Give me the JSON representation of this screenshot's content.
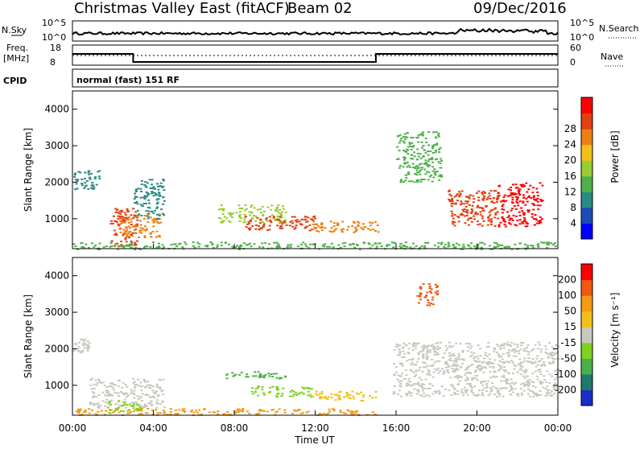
{
  "header": {
    "station": "Christmas Valley East (fitACF)",
    "beam": "Beam 02",
    "date": "09/Dec/2016"
  },
  "nsky_panel": {
    "left_label": "N.Sky",
    "right_label": "N.Search",
    "left_ticks": [
      "10^5",
      "10^0"
    ],
    "right_ticks": [
      "10^5",
      "10^0"
    ]
  },
  "freq_panel": {
    "left_label_1": "Freq.",
    "left_label_2": "[MHz]",
    "right_label": "Nave",
    "left_ticks": [
      "18",
      "8"
    ],
    "right_ticks": [
      "60",
      "0"
    ],
    "freq_steps": [
      {
        "t0": 0,
        "t1": 3,
        "mhz": 13.6
      },
      {
        "t0": 3,
        "t1": 15,
        "mhz": 9.6
      },
      {
        "t0": 15,
        "t1": 24,
        "mhz": 13.6
      }
    ]
  },
  "cpid": {
    "label": "CPID",
    "mode": "normal (fast) 151 RF"
  },
  "chart_data": [
    {
      "type": "heatmap",
      "name": "power",
      "ylabel": "Slant Range [km]",
      "ylim": [
        180,
        4500
      ],
      "yticks": [
        "1000",
        "2000",
        "3000",
        "4000"
      ],
      "colorbar_label": "Power [dB]",
      "colorbar_ticks": [
        "4",
        "8",
        "12",
        "16",
        "20",
        "24",
        "28"
      ],
      "colorbar_colors": [
        "#0000ff",
        "#1d4bb8",
        "#2b8a83",
        "#4fb04a",
        "#9acd32",
        "#f3c019",
        "#f07f13",
        "#e24011",
        "#ff0000"
      ],
      "features": [
        {
          "t0": 0.0,
          "t1": 1.3,
          "r0": 1800,
          "r1": 2350,
          "level": 2
        },
        {
          "t0": 1.8,
          "t1": 3.2,
          "r0": 250,
          "r1": 1300,
          "level": 7
        },
        {
          "t0": 2.3,
          "t1": 4.4,
          "r0": 500,
          "r1": 1150,
          "level": 6
        },
        {
          "t0": 3.0,
          "t1": 4.5,
          "r0": 1000,
          "r1": 2100,
          "level": 2
        },
        {
          "t0": 7.2,
          "t1": 10.5,
          "r0": 900,
          "r1": 1400,
          "level": 4
        },
        {
          "t0": 8.5,
          "t1": 12.0,
          "r0": 700,
          "r1": 1100,
          "level": 7
        },
        {
          "t0": 11.8,
          "t1": 15.2,
          "r0": 650,
          "r1": 950,
          "level": 6
        },
        {
          "t0": 16.0,
          "t1": 18.2,
          "r0": 2000,
          "r1": 3400,
          "level": 3
        },
        {
          "t0": 18.5,
          "t1": 21.0,
          "r0": 800,
          "r1": 1800,
          "level": 7
        },
        {
          "t0": 21.0,
          "t1": 23.2,
          "r0": 800,
          "r1": 2000,
          "level": 8
        },
        {
          "t0": 0.0,
          "t1": 24.0,
          "r0": 180,
          "r1": 380,
          "level": 3
        }
      ]
    },
    {
      "type": "heatmap",
      "name": "velocity",
      "ylabel": "Slant Range [km]",
      "ylim": [
        180,
        4500
      ],
      "yticks": [
        "1000",
        "2000",
        "3000",
        "4000"
      ],
      "colorbar_label": "Velocity [m s⁻¹]",
      "colorbar_ticks": [
        "200",
        "100",
        "50",
        "15",
        "-15",
        "-50",
        "-100",
        "-200"
      ],
      "colorbar_colors": [
        "#1b2ec8",
        "#1f7a6b",
        "#4cb04a",
        "#7ed321",
        "#c8c8c0",
        "#f3c019",
        "#f59a14",
        "#ef5a10",
        "#ff0000"
      ],
      "features": [
        {
          "t0": 0.0,
          "t1": 0.8,
          "r0": 1900,
          "r1": 2300,
          "color": "#c8c8c0"
        },
        {
          "t0": 0.8,
          "t1": 4.5,
          "r0": 400,
          "r1": 1200,
          "color": "#c8c8c0"
        },
        {
          "t0": 1.7,
          "t1": 3.4,
          "r0": 250,
          "r1": 600,
          "color": "#7ed321"
        },
        {
          "t0": 7.5,
          "t1": 10.5,
          "r0": 1200,
          "r1": 1400,
          "color": "#4cb04a"
        },
        {
          "t0": 8.8,
          "t1": 11.8,
          "r0": 700,
          "r1": 1000,
          "color": "#7ed321"
        },
        {
          "t0": 11.8,
          "t1": 15.0,
          "r0": 600,
          "r1": 850,
          "color": "#f3c019"
        },
        {
          "t0": 15.8,
          "t1": 24.0,
          "r0": 700,
          "r1": 2200,
          "color": "#c8c8c0"
        },
        {
          "t0": 17.0,
          "t1": 18.0,
          "r0": 3200,
          "r1": 3800,
          "color": "#ef5a10"
        },
        {
          "t0": 0.0,
          "t1": 15.0,
          "r0": 200,
          "r1": 380,
          "color": "#f59a14"
        }
      ]
    }
  ],
  "xaxis": {
    "label": "Time UT",
    "ticks": [
      "00:00",
      "04:00",
      "08:00",
      "12:00",
      "16:00",
      "20:00",
      "00:00"
    ]
  }
}
